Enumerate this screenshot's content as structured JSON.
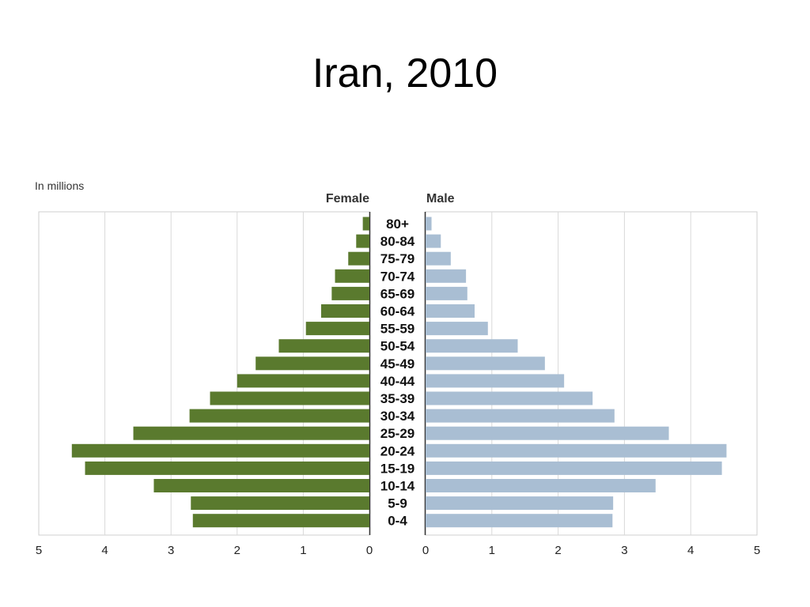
{
  "slide": {
    "title": "Iran, 2010"
  },
  "chart_data": {
    "type": "bar",
    "unit_label": "In millions",
    "categories": [
      "80+",
      "80-84",
      "75-79",
      "70-74",
      "65-69",
      "60-64",
      "55-59",
      "50-54",
      "45-49",
      "40-44",
      "35-39",
      "30-34",
      "25-29",
      "20-24",
      "15-19",
      "10-14",
      "5-9",
      "0-4"
    ],
    "series": [
      {
        "name": "Female",
        "color": "#5a7a2e",
        "values": [
          0.1,
          0.2,
          0.32,
          0.52,
          0.57,
          0.73,
          0.96,
          1.37,
          1.72,
          2.0,
          2.41,
          2.72,
          3.57,
          4.5,
          4.3,
          3.26,
          2.7,
          2.67
        ]
      },
      {
        "name": "Male",
        "color": "#a9bed3",
        "values": [
          0.09,
          0.23,
          0.38,
          0.61,
          0.63,
          0.74,
          0.94,
          1.39,
          1.8,
          2.09,
          2.52,
          2.85,
          3.67,
          4.54,
          4.47,
          3.47,
          2.83,
          2.82
        ]
      }
    ],
    "xlim": [
      0,
      5
    ],
    "ticks": [
      0,
      1,
      2,
      3,
      4,
      5
    ],
    "grid": true,
    "legend": "top-center"
  }
}
